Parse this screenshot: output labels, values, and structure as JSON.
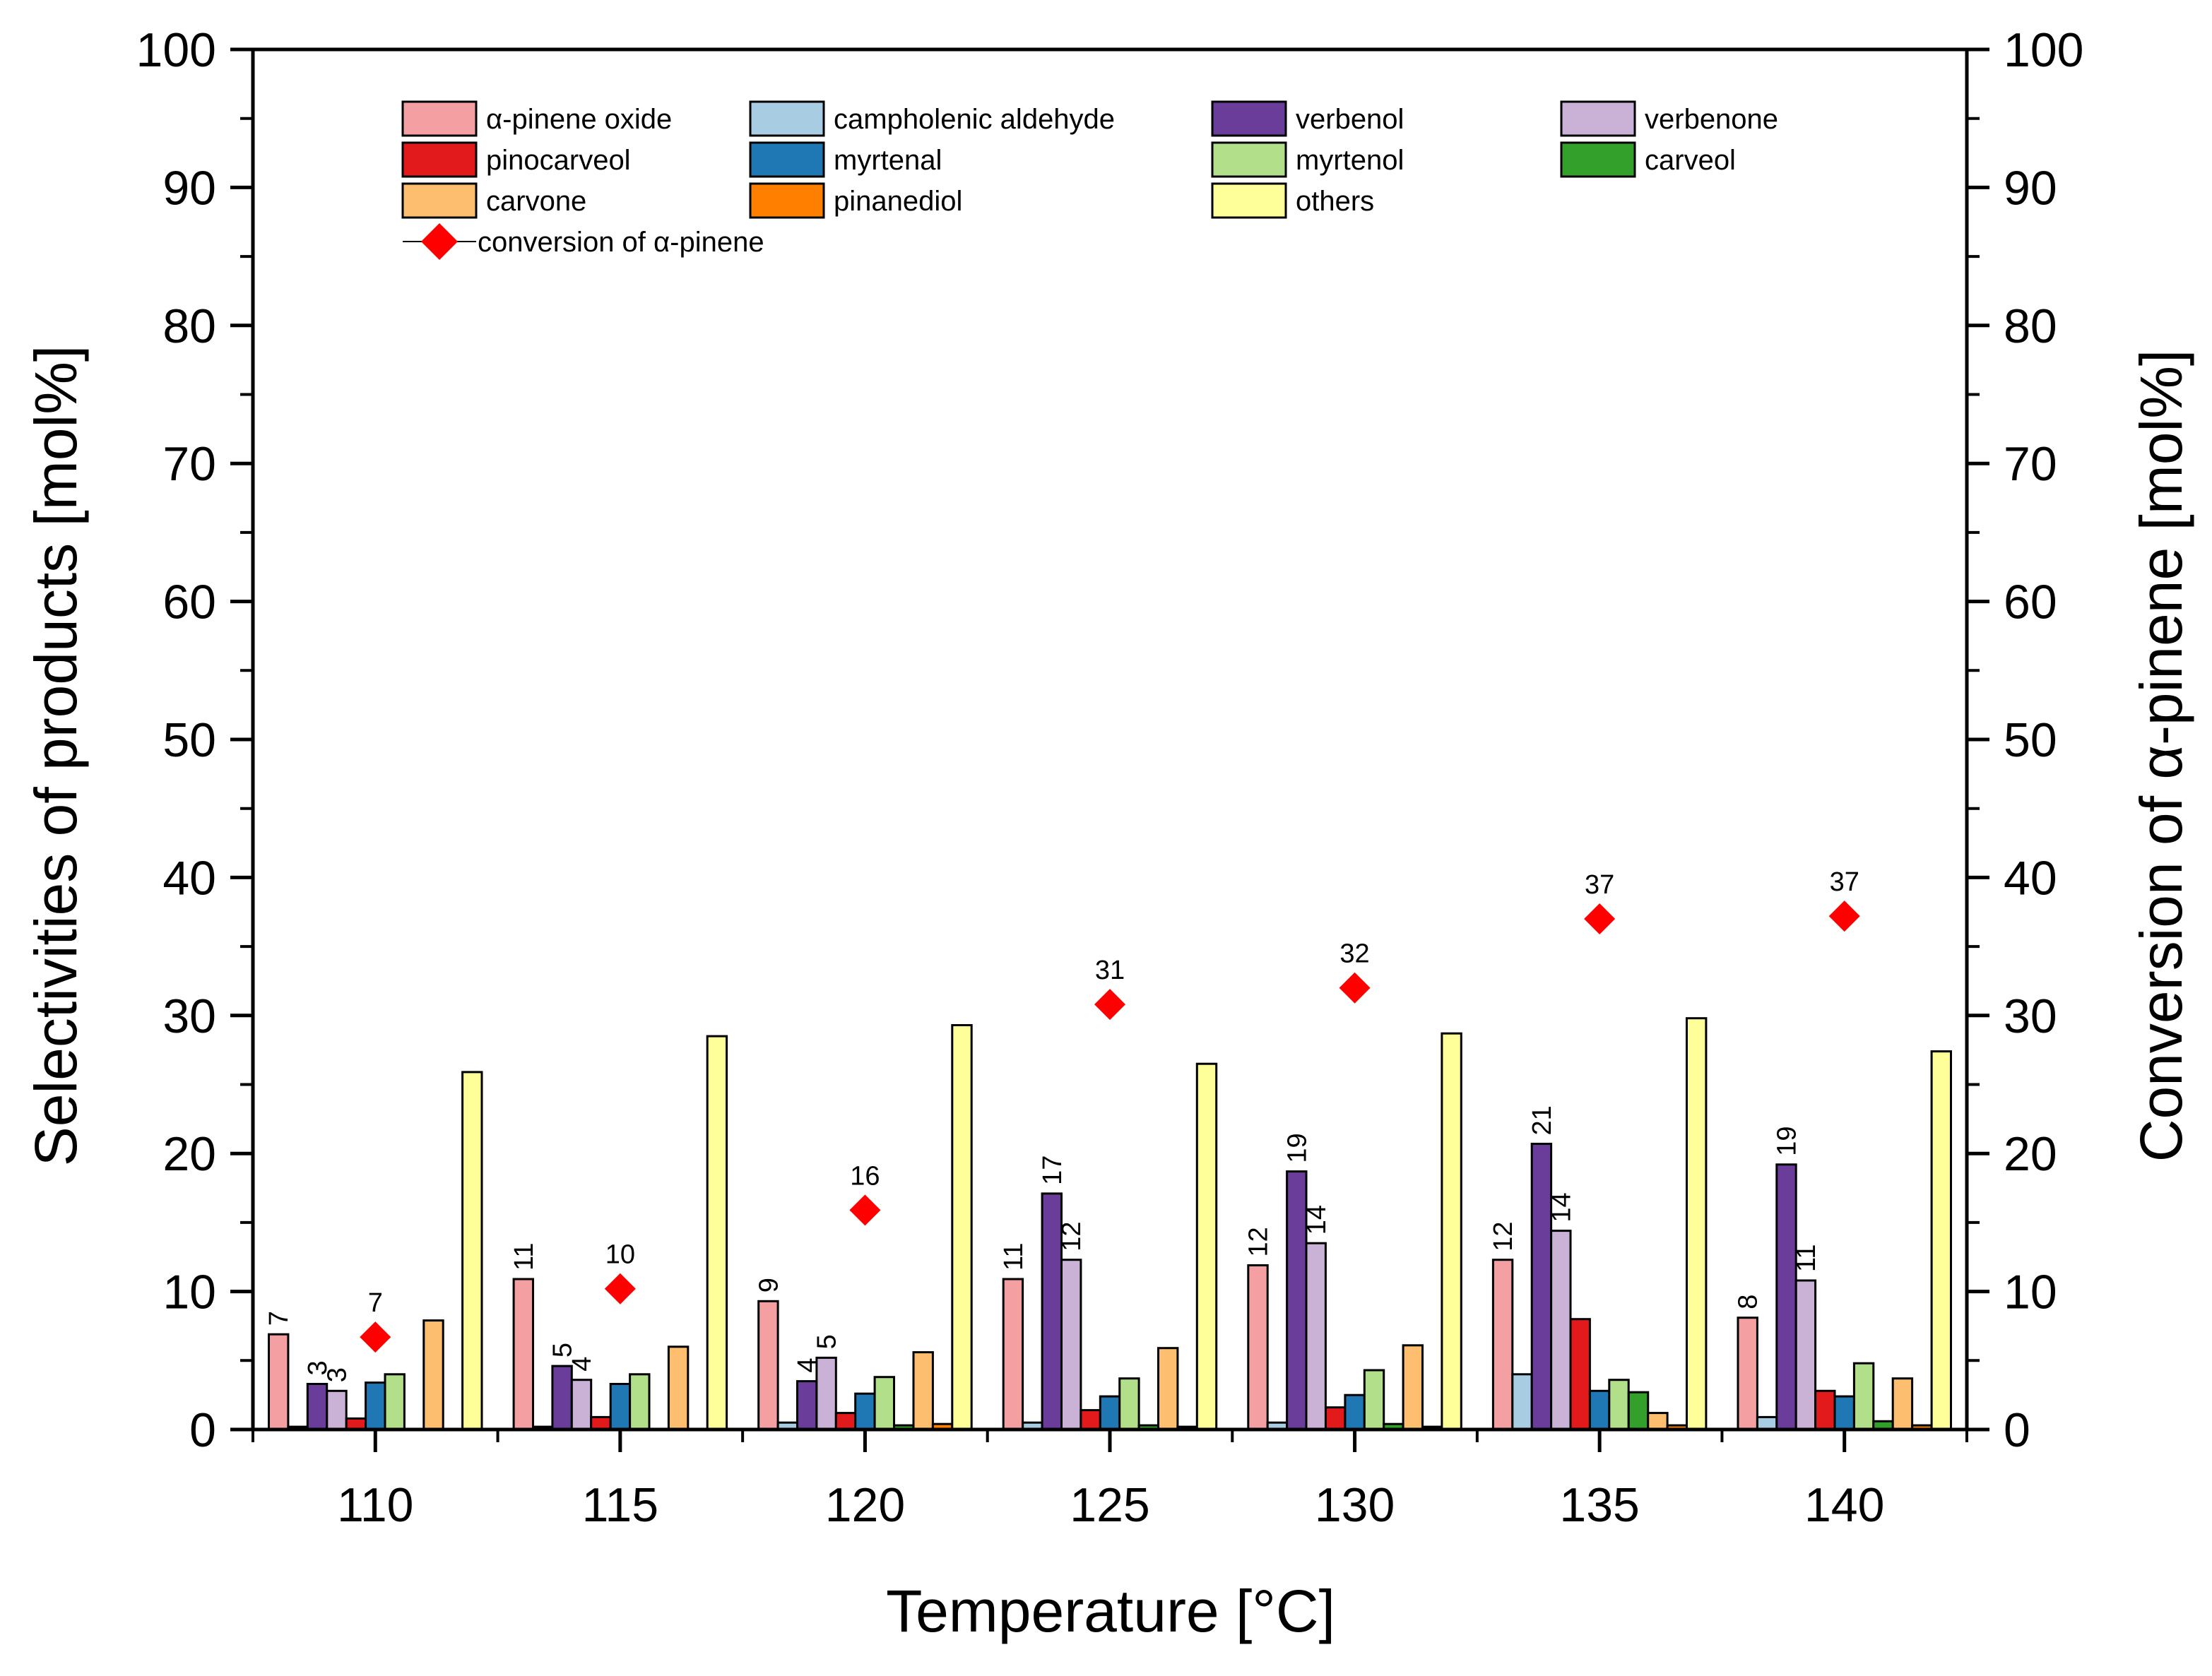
{
  "chart_data": {
    "type": "bar",
    "title": "",
    "xlabel": "Temperature [°C]",
    "ylabel": "Selectivities of products [mol%]",
    "y2label": "Conversion of α-pinene [mol%]",
    "ylim": [
      0,
      100
    ],
    "y2lim": [
      0,
      100
    ],
    "yticks": [
      "0",
      "10",
      "20",
      "30",
      "40",
      "50",
      "60",
      "70",
      "80",
      "90",
      "100"
    ],
    "categories": [
      "110",
      "115",
      "120",
      "125",
      "130",
      "135",
      "140"
    ],
    "series": [
      {
        "name": "α-pinene oxide",
        "color": "#f4a0a3",
        "values": [
          6.9,
          10.9,
          9.3,
          10.9,
          11.9,
          12.3,
          8.1
        ],
        "labels": [
          "7",
          "11",
          "9",
          "11",
          "12",
          "12",
          "8"
        ]
      },
      {
        "name": "campholenic aldehyde",
        "color": "#a8cde3",
        "values": [
          0.2,
          0.2,
          0.5,
          0.5,
          0.5,
          4.0,
          0.9
        ],
        "labels": [
          "",
          "",
          "",
          "",
          "",
          "",
          ""
        ]
      },
      {
        "name": "verbenol",
        "color": "#6a3d9a",
        "values": [
          3.3,
          4.6,
          3.5,
          17.1,
          18.7,
          20.7,
          19.2
        ],
        "labels": [
          "3",
          "5",
          "4",
          "17",
          "19",
          "21",
          "19"
        ]
      },
      {
        "name": "verbenone",
        "color": "#cab2d6",
        "values": [
          2.8,
          3.6,
          5.2,
          12.3,
          13.5,
          14.4,
          10.8
        ],
        "labels": [
          "3",
          "4",
          "5",
          "12",
          "14",
          "14",
          "11"
        ]
      },
      {
        "name": "pinocarveol",
        "color": "#e31a1c",
        "values": [
          0.8,
          0.9,
          1.2,
          1.4,
          1.6,
          8.0,
          2.8
        ],
        "labels": [
          "",
          "",
          "",
          "",
          "",
          "",
          ""
        ]
      },
      {
        "name": "myrtenal",
        "color": "#1f78b4",
        "values": [
          3.4,
          3.3,
          2.6,
          2.4,
          2.5,
          2.8,
          2.4
        ],
        "labels": [
          "",
          "",
          "",
          "",
          "",
          "",
          ""
        ]
      },
      {
        "name": "myrtenol",
        "color": "#b2df8a",
        "values": [
          4.0,
          4.0,
          3.8,
          3.7,
          4.3,
          3.6,
          4.8
        ],
        "labels": [
          "",
          "",
          "",
          "",
          "",
          "",
          ""
        ]
      },
      {
        "name": "carveol",
        "color": "#33a02c",
        "values": [
          0,
          0,
          0.3,
          0.3,
          0.4,
          2.7,
          0.6
        ],
        "labels": [
          "",
          "",
          "",
          "",
          "",
          "",
          ""
        ]
      },
      {
        "name": "carvone",
        "color": "#fdbf6f",
        "values": [
          7.9,
          6.0,
          5.6,
          5.9,
          6.1,
          1.2,
          3.7
        ],
        "labels": [
          "",
          "",
          "",
          "",
          "",
          "",
          ""
        ]
      },
      {
        "name": "pinanediol",
        "color": "#ff7f00",
        "values": [
          0,
          0,
          0.4,
          0.2,
          0.2,
          0.3,
          0.3
        ],
        "labels": [
          "",
          "",
          "",
          "",
          "",
          "",
          ""
        ]
      },
      {
        "name": "others",
        "color": "#ffff99",
        "values": [
          25.9,
          28.5,
          29.3,
          26.5,
          28.7,
          29.8,
          27.4
        ],
        "labels": [
          "",
          "",
          "",
          "",
          "",
          "",
          ""
        ]
      }
    ],
    "conversion": {
      "name": "conversion of α-pinene",
      "color": "#ff0000",
      "values": [
        6.7,
        10.2,
        15.9,
        30.8,
        32.0,
        37.0,
        37.2
      ],
      "labels": [
        "7",
        "10",
        "16",
        "31",
        "32",
        "37",
        "37"
      ]
    },
    "legend_position": "top"
  }
}
